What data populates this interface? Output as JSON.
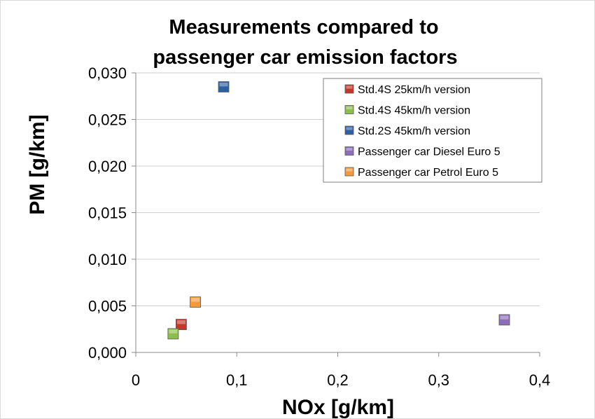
{
  "chart_data": {
    "type": "scatter",
    "title": [
      "Measurements compared to",
      "passenger car emission factors"
    ],
    "xlabel": "NOx [g/km]",
    "ylabel": "PM [g/km]",
    "xlim": [
      0,
      0.4
    ],
    "ylim": [
      0,
      0.03
    ],
    "x_ticks": [
      "0",
      "0,1",
      "0,2",
      "0,3",
      "0,4"
    ],
    "y_ticks": [
      "0,000",
      "0,005",
      "0,010",
      "0,015",
      "0,020",
      "0,025",
      "0,030"
    ],
    "grid": "horizontal",
    "legend_position": "top-right",
    "series": [
      {
        "name": "Std.4S 25km/h version",
        "color": "#c0392b",
        "points": [
          [
            0.045,
            0.003
          ]
        ]
      },
      {
        "name": "Std.4S 45km/h version",
        "color": "#8cbf4a",
        "points": [
          [
            0.037,
            0.002
          ]
        ]
      },
      {
        "name": "Std.2S 45km/h version",
        "color": "#2e5fa3",
        "points": [
          [
            0.087,
            0.0285
          ]
        ]
      },
      {
        "name": "Passenger car Diesel Euro 5",
        "color": "#8d6cb8",
        "points": [
          [
            0.365,
            0.0035
          ]
        ]
      },
      {
        "name": "Passenger car Petrol Euro 5",
        "color": "#f39a3c",
        "points": [
          [
            0.059,
            0.0054
          ]
        ]
      }
    ]
  }
}
